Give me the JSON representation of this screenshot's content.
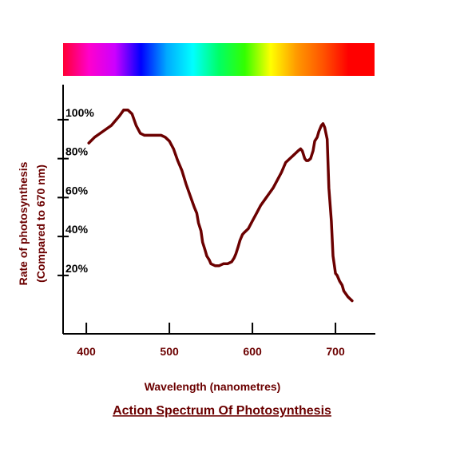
{
  "chart_data": {
    "type": "line",
    "title": "Action Spectrum Of Photosynthesis",
    "xlabel": "Wavelength (nanometres)",
    "ylabel": "Rate of photosynthesis",
    "ylabel_sub": "(Compared to 670 nm)",
    "xlim": [
      372,
      748
    ],
    "ylim": [
      -10,
      118
    ],
    "x_ticks": [
      400,
      500,
      600,
      700
    ],
    "x_tick_labels": [
      "400",
      "500",
      "600",
      "700"
    ],
    "y_ticks": [
      20,
      40,
      60,
      80,
      100
    ],
    "y_tick_labels": [
      "20%",
      "40%",
      "60%",
      "80%",
      "100%"
    ],
    "grid": false,
    "legend": "none",
    "spectrum_bar": {
      "colors": [
        "#ff0033",
        "#ff00cc",
        "#cc00ff",
        "#0000ff",
        "#00aaff",
        "#00ffff",
        "#00ff66",
        "#33ff00",
        "#ffff00",
        "#ff9900",
        "#ff5500",
        "#ff0000",
        "#ff0000"
      ]
    },
    "colors": {
      "line": "#6b0000",
      "axis": "#000000",
      "label": "#6b0000"
    },
    "series": [
      {
        "x": [
          403,
          410,
          420,
          430,
          440,
          445,
          450,
          455,
          460,
          465,
          470,
          480,
          490,
          495,
          500,
          505,
          510,
          515,
          520,
          525,
          530,
          533,
          535,
          538,
          540,
          543,
          545,
          548,
          550,
          555,
          560,
          565,
          570,
          575,
          578,
          580,
          583,
          585,
          588,
          590,
          595,
          600,
          605,
          610,
          615,
          620,
          625,
          630,
          635,
          640,
          645,
          650,
          655,
          658,
          660,
          663,
          665,
          667,
          670,
          673,
          675,
          678,
          680,
          683,
          685,
          687,
          690,
          692,
          695,
          697,
          700,
          702,
          705,
          708,
          710,
          715,
          720
        ],
        "y": [
          88,
          91,
          94,
          97,
          102,
          105,
          105,
          103,
          97,
          93,
          92,
          92,
          92,
          91,
          89,
          85,
          79,
          74,
          67,
          61,
          55,
          52,
          47,
          43,
          37,
          33,
          30,
          28,
          26,
          25,
          25,
          26,
          26,
          27,
          29,
          31,
          35,
          38,
          41,
          42,
          44,
          48,
          52,
          56,
          59,
          62,
          65,
          69,
          73,
          78,
          80,
          82,
          84,
          85,
          84,
          80,
          79,
          79,
          80,
          84,
          89,
          91,
          94,
          97,
          98,
          96,
          90,
          65,
          48,
          30,
          21,
          20,
          17,
          15,
          12,
          9,
          7
        ]
      }
    ]
  }
}
